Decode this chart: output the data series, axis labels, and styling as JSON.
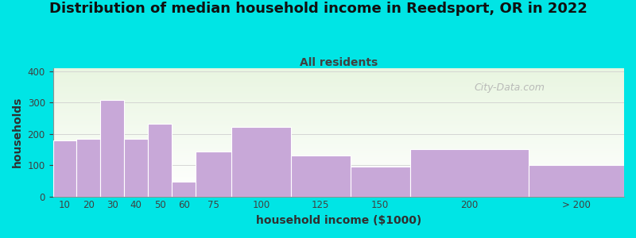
{
  "title": "Distribution of median household income in Reedsport, OR in 2022",
  "subtitle": "All residents",
  "xlabel": "household income ($1000)",
  "ylabel": "households",
  "bar_labels": [
    "10",
    "20",
    "30",
    "40",
    "50",
    "60",
    "75",
    "100",
    "125",
    "150",
    "200",
    "> 200"
  ],
  "bar_values": [
    178,
    185,
    308,
    185,
    232,
    48,
    143,
    222,
    130,
    96,
    152,
    100
  ],
  "bar_edges": [
    0,
    10,
    20,
    30,
    40,
    50,
    60,
    75,
    100,
    125,
    150,
    200,
    240
  ],
  "bar_color": "#c8a8d8",
  "background_color": "#00e5e5",
  "plot_bg_top": "#e8f5e0",
  "plot_bg_bottom": "#ffffff",
  "ylim": [
    0,
    410
  ],
  "yticks": [
    0,
    100,
    200,
    300,
    400
  ],
  "title_fontsize": 13,
  "subtitle_fontsize": 10,
  "subtitle_color": "#404040",
  "axis_label_fontsize": 10,
  "watermark_text": "City-Data.com",
  "watermark_color": "#b0b0b0",
  "grid_color": "#d0d0d0",
  "spine_color": "#909090"
}
